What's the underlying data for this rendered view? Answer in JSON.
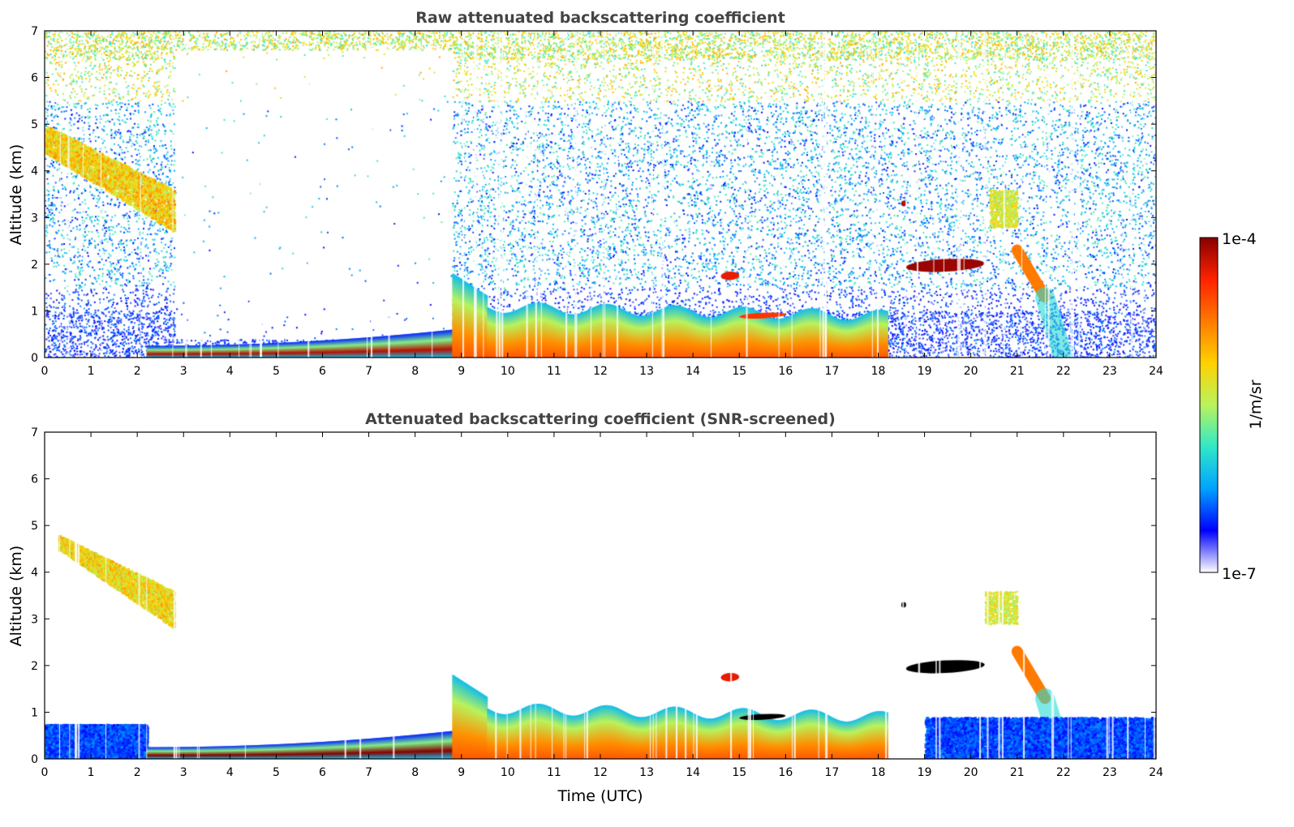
{
  "colors": {
    "colormap": [
      "#ffffff",
      "#0000ff",
      "#00a2ff",
      "#30e8c8",
      "#b9f35c",
      "#ffd200",
      "#ff7a00",
      "#ff2200",
      "#870000"
    ],
    "screened_saturated": "#000000",
    "frame": "#000000"
  },
  "chart_data": [
    {
      "type": "heatmap",
      "title": "Raw attenuated backscattering coefficient",
      "xlabel": "",
      "ylabel": "Altitude (km)",
      "xlim": [
        0,
        24
      ],
      "ylim": [
        0,
        7
      ],
      "x_ticks": [
        "0",
        "1",
        "2",
        "3",
        "4",
        "5",
        "6",
        "7",
        "8",
        "9",
        "10",
        "11",
        "12",
        "13",
        "14",
        "15",
        "16",
        "17",
        "18",
        "19",
        "20",
        "21",
        "22",
        "23",
        "24"
      ],
      "y_ticks": [
        "0",
        "1",
        "2",
        "3",
        "4",
        "5",
        "6",
        "7"
      ],
      "features": [
        {
          "feature": "noise",
          "x": [
            0,
            24
          ],
          "y": [
            0,
            7
          ]
        },
        {
          "feature": "noise_clear_gap",
          "x": [
            2.8,
            8.8
          ],
          "y": [
            0.4,
            6.6
          ]
        },
        {
          "feature": "high_cloud",
          "x": [
            0,
            2.8
          ],
          "y_top": [
            5.0,
            3.6
          ],
          "y_bottom": [
            4.4,
            2.7
          ],
          "level": 0.62
        },
        {
          "feature": "stable_layer",
          "x": [
            2.2,
            8.8
          ],
          "y_top": [
            0.25,
            0.6
          ],
          "level": 0.95
        },
        {
          "feature": "boundary_layer",
          "x": [
            8.8,
            18.2
          ],
          "y_top": [
            1.8,
            0.9
          ],
          "level": 0.7
        },
        {
          "feature": "cloud",
          "x": [
            14.6,
            15.0
          ],
          "y": [
            1.6,
            1.9
          ],
          "level": 0.9
        },
        {
          "feature": "cloud",
          "x": [
            15.0,
            16.0
          ],
          "y": [
            0.8,
            1.0
          ],
          "level": 0.85
        },
        {
          "feature": "cloud",
          "x": [
            18.6,
            20.3
          ],
          "y": [
            1.75,
            2.2
          ],
          "level": 0.98
        },
        {
          "feature": "cloud",
          "x": [
            18.5,
            18.6
          ],
          "y": [
            3.2,
            3.4
          ],
          "level": 0.95
        },
        {
          "feature": "falling_layer",
          "x": [
            21.0,
            21.6
          ],
          "y": [
            1.3,
            2.3
          ],
          "level": 0.75
        },
        {
          "feature": "virga",
          "x": [
            20.4,
            21.0
          ],
          "y": [
            2.8,
            3.6
          ],
          "level": 0.55
        }
      ]
    },
    {
      "type": "heatmap",
      "title": "Attenuated backscattering coefficient (SNR-screened)",
      "xlabel": "Time (UTC)",
      "ylabel": "Altitude (km)",
      "xlim": [
        0,
        24
      ],
      "ylim": [
        0,
        7
      ],
      "x_ticks": [
        "0",
        "1",
        "2",
        "3",
        "4",
        "5",
        "6",
        "7",
        "8",
        "9",
        "10",
        "11",
        "12",
        "13",
        "14",
        "15",
        "16",
        "17",
        "18",
        "19",
        "20",
        "21",
        "22",
        "23",
        "24"
      ],
      "y_ticks": [
        "0",
        "1",
        "2",
        "3",
        "4",
        "5",
        "6",
        "7"
      ],
      "features": [
        {
          "feature": "high_cloud",
          "x": [
            0.3,
            2.8
          ],
          "y_top": [
            4.8,
            3.6
          ],
          "y_bottom": [
            4.5,
            2.8
          ],
          "level": 0.6
        },
        {
          "feature": "low_noise_band",
          "x": [
            0,
            2.2
          ],
          "y": [
            0,
            0.75
          ],
          "level": 0.12
        },
        {
          "feature": "stable_layer",
          "x": [
            2.2,
            8.8
          ],
          "y_top": [
            0.25,
            0.6
          ],
          "level": 1.0
        },
        {
          "feature": "boundary_layer",
          "x": [
            8.8,
            18.2
          ],
          "y_top": [
            1.8,
            0.9
          ],
          "level": 0.7
        },
        {
          "feature": "cloud",
          "x": [
            14.6,
            15.0
          ],
          "y": [
            1.6,
            1.9
          ],
          "level": 0.9
        },
        {
          "feature": "cloud",
          "x": [
            15.0,
            16.0
          ],
          "y": [
            0.8,
            1.0
          ],
          "level": 1.0
        },
        {
          "feature": "cloud",
          "x": [
            18.6,
            20.3
          ],
          "y": [
            1.75,
            2.2
          ],
          "level": 1.0
        },
        {
          "feature": "cloud",
          "x": [
            18.5,
            18.6
          ],
          "y": [
            3.2,
            3.4
          ],
          "level": 1.0
        },
        {
          "feature": "falling_layer",
          "x": [
            21.0,
            21.6
          ],
          "y": [
            1.3,
            2.3
          ],
          "level": 0.75
        },
        {
          "feature": "virga",
          "x": [
            20.3,
            21.0
          ],
          "y": [
            2.9,
            3.6
          ],
          "level": 0.55
        },
        {
          "feature": "low_noise_band",
          "x": [
            19.0,
            24
          ],
          "y": [
            0,
            0.9
          ],
          "level": 0.12
        }
      ]
    }
  ],
  "colorbar": {
    "label": "1/m/sr",
    "max_label": "1e-4",
    "min_label": "1e-7"
  }
}
